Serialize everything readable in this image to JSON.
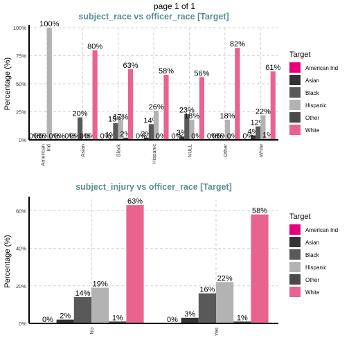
{
  "page_caption": "page 1 of 1",
  "legend": {
    "title": "Target",
    "entries": [
      "American Ind",
      "Asian",
      "Black",
      "Hispanic",
      "Other",
      "White"
    ]
  },
  "series_colors": [
    "#e7007d",
    "#333333",
    "#595959",
    "#b3b3b3",
    "#4a4a4a",
    "#e8638e"
  ],
  "chart_data": [
    {
      "type": "bar",
      "title": "subject_race vs officer_race [Target]",
      "ylabel": "Percentage (%)",
      "xlabel": "",
      "ylim": [
        0,
        100
      ],
      "yticks": [
        "0%",
        "25%",
        "50%",
        "75%",
        "100%"
      ],
      "ytick_values": [
        0,
        25,
        50,
        75,
        100
      ],
      "grid": true,
      "legend_position": "right",
      "categories": [
        "American Ind",
        "Asian",
        "Black",
        "Hispanic",
        "NULL",
        "Other",
        "White"
      ],
      "series": [
        {
          "name": "American Ind",
          "values": [
            0,
            0,
            0,
            0,
            0,
            0,
            0
          ]
        },
        {
          "name": "Asian",
          "values": [
            0,
            0,
            1,
            2,
            3,
            0,
            4
          ]
        },
        {
          "name": "Black",
          "values": [
            0,
            20,
            15,
            14,
            23,
            0,
            12
          ]
        },
        {
          "name": "Hispanic",
          "values": [
            100,
            0,
            17,
            26,
            18,
            18,
            22
          ]
        },
        {
          "name": "Other",
          "values": [
            0,
            0,
            2,
            0,
            0,
            0,
            1
          ]
        },
        {
          "name": "White",
          "values": [
            0,
            80,
            63,
            58,
            56,
            82,
            61
          ]
        }
      ]
    },
    {
      "type": "bar",
      "title": "subject_injury vs officer_race [Target]",
      "ylabel": "Percentage (%)",
      "xlabel": "",
      "ylim": [
        0,
        66
      ],
      "yticks": [
        "0%",
        "20%",
        "40%",
        "60%"
      ],
      "ytick_values": [
        0,
        20,
        40,
        60
      ],
      "grid": true,
      "legend_position": "right",
      "categories": [
        "No",
        "Yes"
      ],
      "series": [
        {
          "name": "American Ind",
          "values": [
            0,
            0
          ]
        },
        {
          "name": "Asian",
          "values": [
            2,
            3
          ]
        },
        {
          "name": "Black",
          "values": [
            14,
            16
          ]
        },
        {
          "name": "Hispanic",
          "values": [
            19,
            22
          ]
        },
        {
          "name": "Other",
          "values": [
            1,
            1
          ]
        },
        {
          "name": "White",
          "values": [
            63,
            58
          ]
        }
      ]
    }
  ]
}
